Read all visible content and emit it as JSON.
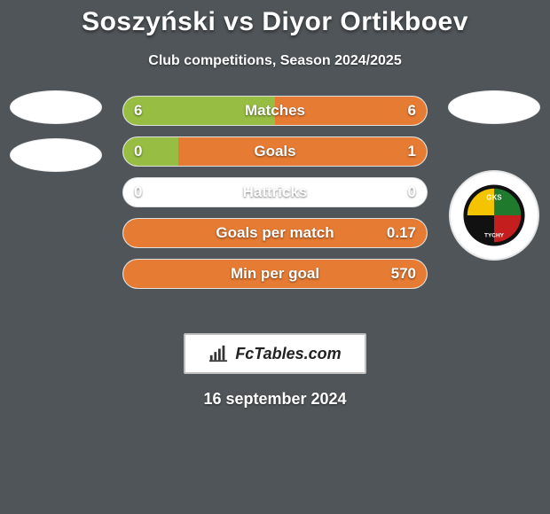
{
  "background_color": "#4f5558",
  "title": "Soszyński vs Diyor Ortikboev",
  "title_color": "#ffffff",
  "title_fontsize": 30,
  "subtitle": "Club competitions, Season 2024/2025",
  "subtitle_color": "#ffffff",
  "subtitle_fontsize": 16,
  "left_player_color": "#97bd43",
  "right_player_color": "#e67b33",
  "bar_bg_color": "#ffffff",
  "bar_text_color": "#ffffff",
  "bars": [
    {
      "label": "Matches",
      "left": "6",
      "right": "6",
      "left_fill_pct": 50,
      "right_fill_pct": 50
    },
    {
      "label": "Goals",
      "left": "0",
      "right": "1",
      "left_fill_pct": 18,
      "right_fill_pct": 82
    },
    {
      "label": "Hattricks",
      "left": "0",
      "right": "0",
      "left_fill_pct": 0,
      "right_fill_pct": 0
    },
    {
      "label": "Goals per match",
      "left": "",
      "right": "0.17",
      "left_fill_pct": 0,
      "right_fill_pct": 100
    },
    {
      "label": "Min per goal",
      "left": "",
      "right": "570",
      "left_fill_pct": 0,
      "right_fill_pct": 100
    }
  ],
  "right_badge": {
    "label": "GKS TYCHY",
    "colors": {
      "green": "#1f7a2e",
      "red": "#c41e1e",
      "black": "#111111",
      "yellow": "#f4c400",
      "border": "#ffffff"
    }
  },
  "brand": "FcTables.com",
  "date": "16 september 2024"
}
